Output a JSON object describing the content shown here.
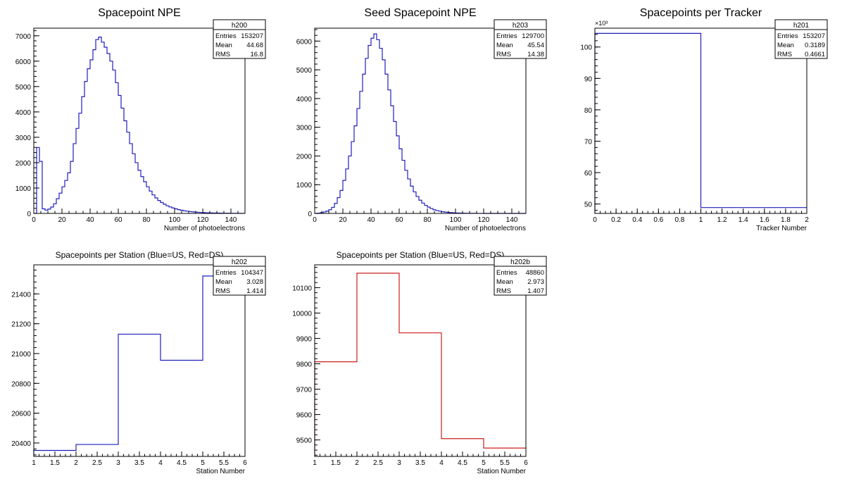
{
  "canvas": {
    "background": "#ffffff",
    "frame_color": "#000000"
  },
  "chart_data": [
    {
      "id": "h200",
      "type": "histogram",
      "title": "Spacepoint NPE",
      "xlabel": "Number of photoelectrons",
      "ylabel": "",
      "xlim": [
        0,
        150
      ],
      "ylim": [
        0,
        7300
      ],
      "xticks": [
        0,
        20,
        40,
        60,
        80,
        100,
        120,
        140
      ],
      "yticks": [
        0,
        1000,
        2000,
        3000,
        4000,
        5000,
        6000,
        7000
      ],
      "y_exponent": "",
      "grid": false,
      "line_color": "#1f1fbd",
      "stats": {
        "name": "h200",
        "rows": [
          {
            "label": "Entries",
            "value": "153207"
          },
          {
            "label": "Mean",
            "value": "44.68"
          },
          {
            "label": "RMS",
            "value": "16.8"
          }
        ]
      },
      "edges_start": 0,
      "bin_width": 2,
      "values": [
        0,
        2600,
        2050,
        180,
        130,
        170,
        250,
        380,
        580,
        800,
        1050,
        1300,
        1600,
        2050,
        2750,
        3350,
        3950,
        4600,
        5200,
        5700,
        6050,
        6450,
        6850,
        6950,
        6750,
        6550,
        6300,
        6000,
        5650,
        5150,
        4650,
        4150,
        3650,
        3200,
        2750,
        2350,
        2000,
        1700,
        1450,
        1250,
        1050,
        880,
        730,
        610,
        510,
        430,
        360,
        300,
        255,
        215,
        180,
        150,
        125,
        105,
        88,
        74,
        62,
        52,
        44,
        37,
        31,
        26,
        22,
        18,
        15,
        13,
        11,
        9,
        8,
        6,
        5,
        4,
        3,
        3,
        2
      ]
    },
    {
      "id": "h203",
      "type": "histogram",
      "title": "Seed Spacepoint NPE",
      "xlabel": "Number of photoelectrons",
      "ylabel": "",
      "xlim": [
        0,
        150
      ],
      "ylim": [
        0,
        6450
      ],
      "xticks": [
        0,
        20,
        40,
        60,
        80,
        100,
        120,
        140
      ],
      "yticks": [
        0,
        1000,
        2000,
        3000,
        4000,
        5000,
        6000
      ],
      "y_exponent": "",
      "grid": false,
      "line_color": "#1f1fbd",
      "stats": {
        "name": "h203",
        "rows": [
          {
            "label": "Entries",
            "value": "129700"
          },
          {
            "label": "Mean",
            "value": "45.54"
          },
          {
            "label": "RMS",
            "value": "14.38"
          }
        ]
      },
      "edges_start": 0,
      "bin_width": 2,
      "values": [
        0,
        10,
        25,
        50,
        80,
        130,
        210,
        350,
        550,
        800,
        1150,
        1550,
        2000,
        2500,
        3050,
        3650,
        4250,
        4850,
        5400,
        5850,
        6100,
        6250,
        6050,
        5750,
        5350,
        4850,
        4300,
        3750,
        3200,
        2700,
        2250,
        1850,
        1500,
        1200,
        950,
        750,
        590,
        460,
        360,
        280,
        220,
        170,
        130,
        100,
        78,
        60,
        46,
        35,
        27,
        21,
        16,
        12,
        9,
        7,
        5,
        4,
        3,
        2,
        2,
        1
      ]
    },
    {
      "id": "h201",
      "type": "histogram",
      "title": "Spacepoints per Tracker",
      "xlabel": "Tracker Number",
      "ylabel": "",
      "xlim": [
        0,
        2
      ],
      "ylim": [
        47,
        106
      ],
      "xticks": [
        0,
        0.2,
        0.4,
        0.6,
        0.8,
        1,
        1.2,
        1.4,
        1.6,
        1.8,
        2
      ],
      "yticks": [
        50,
        60,
        70,
        80,
        90,
        100
      ],
      "y_exponent": "×10³",
      "grid": false,
      "line_color": "#1f1fbd",
      "stats": {
        "name": "h201",
        "rows": [
          {
            "label": "Entries",
            "value": "153207"
          },
          {
            "label": "Mean",
            "value": "0.3189"
          },
          {
            "label": "RMS",
            "value": "0.4661"
          }
        ]
      },
      "edges_start": 0,
      "bin_width": 1,
      "values": [
        104.347,
        48.86
      ]
    },
    {
      "id": "h202",
      "type": "histogram",
      "title": "Spacepoints per Station (Blue=US, Red=DS)",
      "xlabel": "Station Number",
      "ylabel": "",
      "xlim": [
        1,
        6
      ],
      "ylim": [
        20310,
        21595
      ],
      "xticks": [
        1,
        1.5,
        2,
        2.5,
        3,
        3.5,
        4,
        4.5,
        5,
        5.5,
        6
      ],
      "yticks": [
        20400,
        20600,
        20800,
        21000,
        21200,
        21400
      ],
      "y_exponent": "",
      "grid": false,
      "line_color": "#1f1fbd",
      "stats": {
        "name": "h202",
        "rows": [
          {
            "label": "Entries",
            "value": "104347"
          },
          {
            "label": "Mean",
            "value": "3.028"
          },
          {
            "label": "RMS",
            "value": "1.414"
          }
        ]
      },
      "edges_start": 1,
      "bin_width": 1,
      "values": [
        20350,
        20390,
        21130,
        20955,
        21520
      ]
    },
    {
      "id": "h202b",
      "type": "histogram",
      "title": "Spacepoints per Station (Blue=US, Red=DS)",
      "xlabel": "Station Number",
      "ylabel": "",
      "xlim": [
        1,
        6
      ],
      "ylim": [
        9435,
        10190
      ],
      "xticks": [
        1,
        1.5,
        2,
        2.5,
        3,
        3.5,
        4,
        4.5,
        5,
        5.5,
        6
      ],
      "yticks": [
        9500,
        9600,
        9700,
        9800,
        9900,
        10000,
        10100
      ],
      "y_exponent": "",
      "grid": false,
      "line_color": "#cc1f1f",
      "stats": {
        "name": "h202b",
        "rows": [
          {
            "label": "Entries",
            "value": "48860"
          },
          {
            "label": "Mean",
            "value": "2.973"
          },
          {
            "label": "RMS",
            "value": "1.407"
          }
        ]
      },
      "edges_start": 1,
      "bin_width": 1,
      "values": [
        9808,
        10157,
        9922,
        9505,
        9468
      ]
    }
  ]
}
